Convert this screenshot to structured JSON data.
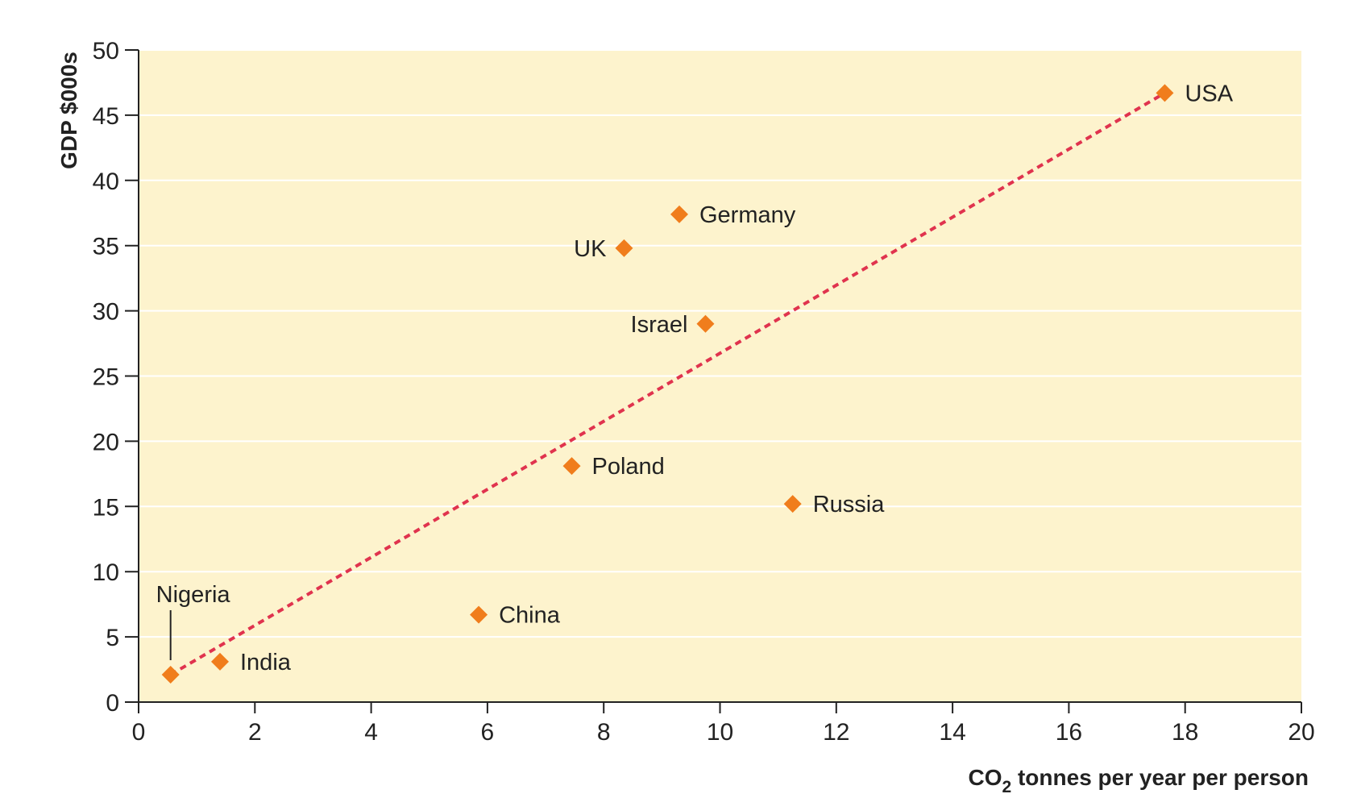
{
  "chart_data": {
    "type": "scatter",
    "title": "",
    "xlabel": {
      "main": "CO",
      "subscript": "2",
      "rest": " tonnes per year per person"
    },
    "ylabel": "GDP $000s",
    "xlim": [
      0,
      20
    ],
    "ylim": [
      0,
      50
    ],
    "xticks": [
      0,
      2,
      4,
      6,
      8,
      10,
      12,
      14,
      16,
      18,
      20
    ],
    "yticks": [
      0,
      5,
      10,
      15,
      20,
      25,
      30,
      35,
      40,
      45,
      50
    ],
    "grid": "horizontal",
    "colors": {
      "plot_background": "#fdf3cd",
      "marker": "#f07d1c",
      "trendline": "#e0334e",
      "axis": "#222222",
      "grid": "#ffffff"
    },
    "points": [
      {
        "label": "Nigeria",
        "x": 0.55,
        "y": 2.1,
        "label_position": "above-leader"
      },
      {
        "label": "India",
        "x": 1.4,
        "y": 3.1,
        "label_position": "right"
      },
      {
        "label": "China",
        "x": 5.85,
        "y": 6.7,
        "label_position": "right"
      },
      {
        "label": "Poland",
        "x": 7.45,
        "y": 18.1,
        "label_position": "right"
      },
      {
        "label": "Russia",
        "x": 11.25,
        "y": 15.2,
        "label_position": "right"
      },
      {
        "label": "Israel",
        "x": 9.75,
        "y": 29.0,
        "label_position": "left"
      },
      {
        "label": "UK",
        "x": 8.35,
        "y": 34.8,
        "label_position": "left"
      },
      {
        "label": "Germany",
        "x": 9.3,
        "y": 37.4,
        "label_position": "right"
      },
      {
        "label": "USA",
        "x": 17.65,
        "y": 46.7,
        "label_position": "right"
      }
    ],
    "trendline": {
      "style": "dashed",
      "from": {
        "x": 0.55,
        "y": 2.1
      },
      "to": {
        "x": 17.65,
        "y": 46.7
      }
    }
  }
}
